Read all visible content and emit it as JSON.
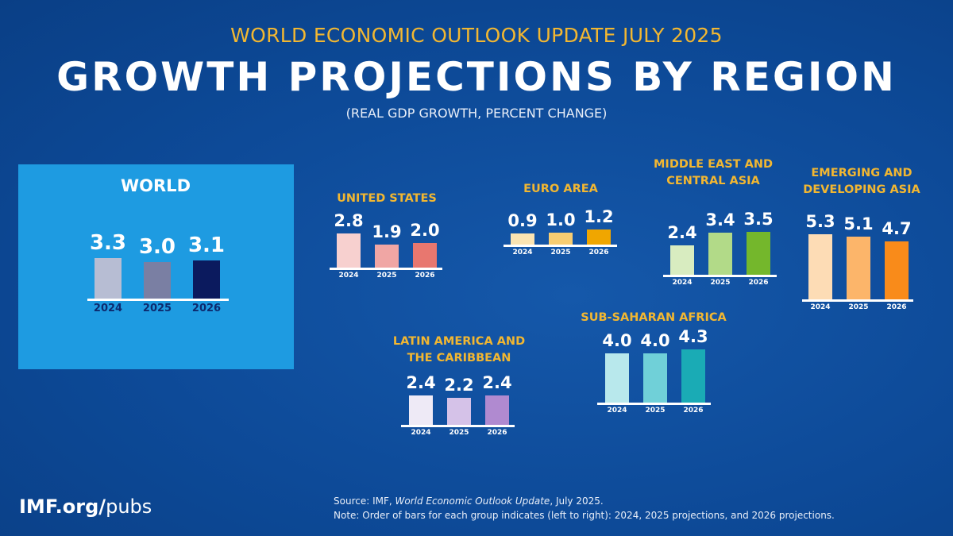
{
  "header": {
    "supertitle": "WORLD ECONOMIC OUTLOOK UPDATE JULY 2025",
    "title": "GROWTH PROJECTIONS BY REGION",
    "subtitle": "(REAL GDP GROWTH, PERCENT CHANGE)"
  },
  "footer": {
    "logo_bold": "IMF.org/",
    "logo_light": "pubs",
    "source_prefix": "Source:  IMF, ",
    "source_italic": "World Economic Outlook Update",
    "source_suffix": ", July 2025.",
    "note": "Note:  Order of bars for each group indicates (left to right): 2024, 2025 projections, and 2026 projections."
  },
  "chart_data": [
    {
      "type": "bar",
      "title": "WORLD",
      "categories": [
        "2024",
        "2025",
        "2026"
      ],
      "values": [
        3.3,
        3.0,
        3.1
      ],
      "colors": [
        "#b7bdd3",
        "#7a7fa3",
        "#0b1a5e"
      ]
    },
    {
      "type": "bar",
      "title": "UNITED STATES",
      "categories": [
        "2024",
        "2025",
        "2026"
      ],
      "values": [
        2.8,
        1.9,
        2.0
      ],
      "colors": [
        "#f7d0cf",
        "#f0a6a4",
        "#e8776f"
      ]
    },
    {
      "type": "bar",
      "title": "EURO AREA",
      "categories": [
        "2024",
        "2025",
        "2026"
      ],
      "values": [
        0.9,
        1.0,
        1.2
      ],
      "colors": [
        "#fbe4b2",
        "#f7cd72",
        "#f0a600"
      ]
    },
    {
      "type": "bar",
      "title": "MIDDLE EAST AND CENTRAL ASIA",
      "categories": [
        "2024",
        "2025",
        "2026"
      ],
      "values": [
        2.4,
        3.4,
        3.5
      ],
      "colors": [
        "#d8ecc0",
        "#b2da88",
        "#74b72c"
      ]
    },
    {
      "type": "bar",
      "title": "EMERGING AND DEVELOPING ASIA",
      "categories": [
        "2024",
        "2025",
        "2026"
      ],
      "values": [
        5.3,
        5.1,
        4.7
      ],
      "colors": [
        "#fddcb5",
        "#fcb56a",
        "#f98b1a"
      ]
    },
    {
      "type": "bar",
      "title": "LATIN AMERICA AND THE CARIBBEAN",
      "categories": [
        "2024",
        "2025",
        "2026"
      ],
      "values": [
        2.4,
        2.2,
        2.4
      ],
      "colors": [
        "#eeeaf6",
        "#d5c2e8",
        "#b08ad0"
      ]
    },
    {
      "type": "bar",
      "title": "SUB-SAHARAN AFRICA",
      "categories": [
        "2024",
        "2025",
        "2026"
      ],
      "values": [
        4.0,
        4.0,
        4.3
      ],
      "colors": [
        "#b8e8ec",
        "#70d0d8",
        "#1aabb5"
      ]
    }
  ]
}
